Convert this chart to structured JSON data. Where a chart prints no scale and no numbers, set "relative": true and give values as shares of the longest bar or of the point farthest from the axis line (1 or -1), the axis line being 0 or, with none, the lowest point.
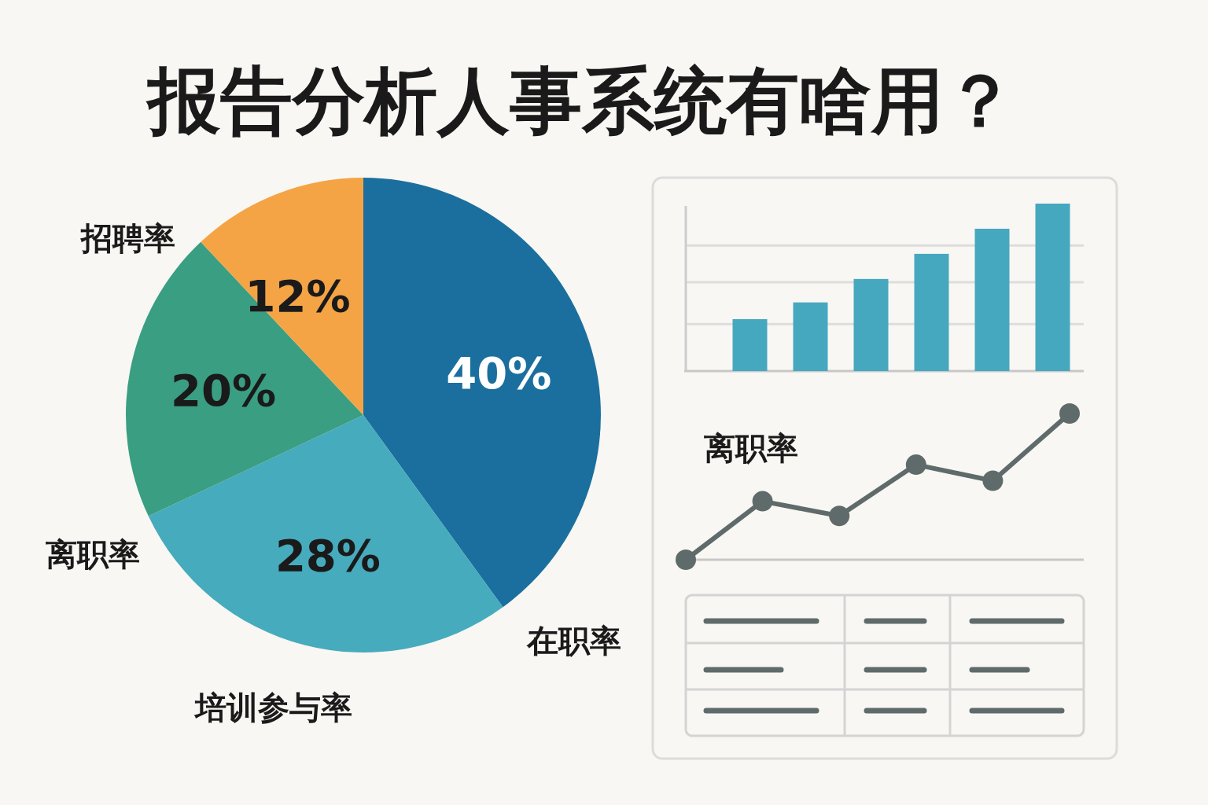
{
  "chart_data": [
    {
      "type": "pie",
      "title": "报告分析人事系统有啥用？",
      "categories": [
        "在职率",
        "培训参与率",
        "离职率",
        "招聘率"
      ],
      "values": [
        40,
        28,
        20,
        12
      ],
      "colors": [
        "#1b6f9e",
        "#46abbd",
        "#3a9e82",
        "#f4a445"
      ],
      "value_labels": [
        "40%",
        "28%",
        "20%",
        "12%"
      ]
    },
    {
      "type": "bar",
      "relative": true,
      "categories": [
        null,
        null,
        null,
        null,
        null,
        null
      ],
      "values": [
        0.31,
        0.41,
        0.55,
        0.7,
        0.85,
        1.0
      ],
      "color": "#46a8bf",
      "grid": "y"
    },
    {
      "type": "line",
      "relative": true,
      "categories": [
        null,
        null,
        null,
        null,
        null,
        null
      ],
      "series": [
        {
          "name": "离职率",
          "color": "#5f6b6b",
          "values": [
            0,
            0.4,
            0.3,
            0.65,
            0.54,
            1.0
          ]
        }
      ],
      "marker": "circle"
    }
  ]
}
